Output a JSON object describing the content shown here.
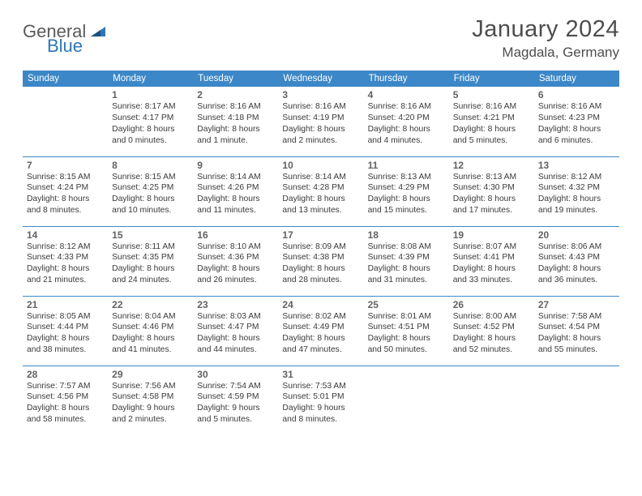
{
  "brand": {
    "part1": "General",
    "part2": "Blue"
  },
  "title": "January 2024",
  "location": "Magdala, Germany",
  "colors": {
    "header_bg": "#3c87c7",
    "header_fg": "#ffffff",
    "border": "#3c87c7",
    "text": "#3a3a3a",
    "daynum": "#626262",
    "brand_gray": "#5a5a5a",
    "brand_blue": "#2f77b6",
    "page_bg": "#ffffff"
  },
  "weekdays": [
    "Sunday",
    "Monday",
    "Tuesday",
    "Wednesday",
    "Thursday",
    "Friday",
    "Saturday"
  ],
  "weeks": [
    [
      null,
      {
        "n": "1",
        "sr": "Sunrise: 8:17 AM",
        "ss": "Sunset: 4:17 PM",
        "d1": "Daylight: 8 hours",
        "d2": "and 0 minutes."
      },
      {
        "n": "2",
        "sr": "Sunrise: 8:16 AM",
        "ss": "Sunset: 4:18 PM",
        "d1": "Daylight: 8 hours",
        "d2": "and 1 minute."
      },
      {
        "n": "3",
        "sr": "Sunrise: 8:16 AM",
        "ss": "Sunset: 4:19 PM",
        "d1": "Daylight: 8 hours",
        "d2": "and 2 minutes."
      },
      {
        "n": "4",
        "sr": "Sunrise: 8:16 AM",
        "ss": "Sunset: 4:20 PM",
        "d1": "Daylight: 8 hours",
        "d2": "and 4 minutes."
      },
      {
        "n": "5",
        "sr": "Sunrise: 8:16 AM",
        "ss": "Sunset: 4:21 PM",
        "d1": "Daylight: 8 hours",
        "d2": "and 5 minutes."
      },
      {
        "n": "6",
        "sr": "Sunrise: 8:16 AM",
        "ss": "Sunset: 4:23 PM",
        "d1": "Daylight: 8 hours",
        "d2": "and 6 minutes."
      }
    ],
    [
      {
        "n": "7",
        "sr": "Sunrise: 8:15 AM",
        "ss": "Sunset: 4:24 PM",
        "d1": "Daylight: 8 hours",
        "d2": "and 8 minutes."
      },
      {
        "n": "8",
        "sr": "Sunrise: 8:15 AM",
        "ss": "Sunset: 4:25 PM",
        "d1": "Daylight: 8 hours",
        "d2": "and 10 minutes."
      },
      {
        "n": "9",
        "sr": "Sunrise: 8:14 AM",
        "ss": "Sunset: 4:26 PM",
        "d1": "Daylight: 8 hours",
        "d2": "and 11 minutes."
      },
      {
        "n": "10",
        "sr": "Sunrise: 8:14 AM",
        "ss": "Sunset: 4:28 PM",
        "d1": "Daylight: 8 hours",
        "d2": "and 13 minutes."
      },
      {
        "n": "11",
        "sr": "Sunrise: 8:13 AM",
        "ss": "Sunset: 4:29 PM",
        "d1": "Daylight: 8 hours",
        "d2": "and 15 minutes."
      },
      {
        "n": "12",
        "sr": "Sunrise: 8:13 AM",
        "ss": "Sunset: 4:30 PM",
        "d1": "Daylight: 8 hours",
        "d2": "and 17 minutes."
      },
      {
        "n": "13",
        "sr": "Sunrise: 8:12 AM",
        "ss": "Sunset: 4:32 PM",
        "d1": "Daylight: 8 hours",
        "d2": "and 19 minutes."
      }
    ],
    [
      {
        "n": "14",
        "sr": "Sunrise: 8:12 AM",
        "ss": "Sunset: 4:33 PM",
        "d1": "Daylight: 8 hours",
        "d2": "and 21 minutes."
      },
      {
        "n": "15",
        "sr": "Sunrise: 8:11 AM",
        "ss": "Sunset: 4:35 PM",
        "d1": "Daylight: 8 hours",
        "d2": "and 24 minutes."
      },
      {
        "n": "16",
        "sr": "Sunrise: 8:10 AM",
        "ss": "Sunset: 4:36 PM",
        "d1": "Daylight: 8 hours",
        "d2": "and 26 minutes."
      },
      {
        "n": "17",
        "sr": "Sunrise: 8:09 AM",
        "ss": "Sunset: 4:38 PM",
        "d1": "Daylight: 8 hours",
        "d2": "and 28 minutes."
      },
      {
        "n": "18",
        "sr": "Sunrise: 8:08 AM",
        "ss": "Sunset: 4:39 PM",
        "d1": "Daylight: 8 hours",
        "d2": "and 31 minutes."
      },
      {
        "n": "19",
        "sr": "Sunrise: 8:07 AM",
        "ss": "Sunset: 4:41 PM",
        "d1": "Daylight: 8 hours",
        "d2": "and 33 minutes."
      },
      {
        "n": "20",
        "sr": "Sunrise: 8:06 AM",
        "ss": "Sunset: 4:43 PM",
        "d1": "Daylight: 8 hours",
        "d2": "and 36 minutes."
      }
    ],
    [
      {
        "n": "21",
        "sr": "Sunrise: 8:05 AM",
        "ss": "Sunset: 4:44 PM",
        "d1": "Daylight: 8 hours",
        "d2": "and 38 minutes."
      },
      {
        "n": "22",
        "sr": "Sunrise: 8:04 AM",
        "ss": "Sunset: 4:46 PM",
        "d1": "Daylight: 8 hours",
        "d2": "and 41 minutes."
      },
      {
        "n": "23",
        "sr": "Sunrise: 8:03 AM",
        "ss": "Sunset: 4:47 PM",
        "d1": "Daylight: 8 hours",
        "d2": "and 44 minutes."
      },
      {
        "n": "24",
        "sr": "Sunrise: 8:02 AM",
        "ss": "Sunset: 4:49 PM",
        "d1": "Daylight: 8 hours",
        "d2": "and 47 minutes."
      },
      {
        "n": "25",
        "sr": "Sunrise: 8:01 AM",
        "ss": "Sunset: 4:51 PM",
        "d1": "Daylight: 8 hours",
        "d2": "and 50 minutes."
      },
      {
        "n": "26",
        "sr": "Sunrise: 8:00 AM",
        "ss": "Sunset: 4:52 PM",
        "d1": "Daylight: 8 hours",
        "d2": "and 52 minutes."
      },
      {
        "n": "27",
        "sr": "Sunrise: 7:58 AM",
        "ss": "Sunset: 4:54 PM",
        "d1": "Daylight: 8 hours",
        "d2": "and 55 minutes."
      }
    ],
    [
      {
        "n": "28",
        "sr": "Sunrise: 7:57 AM",
        "ss": "Sunset: 4:56 PM",
        "d1": "Daylight: 8 hours",
        "d2": "and 58 minutes."
      },
      {
        "n": "29",
        "sr": "Sunrise: 7:56 AM",
        "ss": "Sunset: 4:58 PM",
        "d1": "Daylight: 9 hours",
        "d2": "and 2 minutes."
      },
      {
        "n": "30",
        "sr": "Sunrise: 7:54 AM",
        "ss": "Sunset: 4:59 PM",
        "d1": "Daylight: 9 hours",
        "d2": "and 5 minutes."
      },
      {
        "n": "31",
        "sr": "Sunrise: 7:53 AM",
        "ss": "Sunset: 5:01 PM",
        "d1": "Daylight: 9 hours",
        "d2": "and 8 minutes."
      },
      null,
      null,
      null
    ]
  ]
}
